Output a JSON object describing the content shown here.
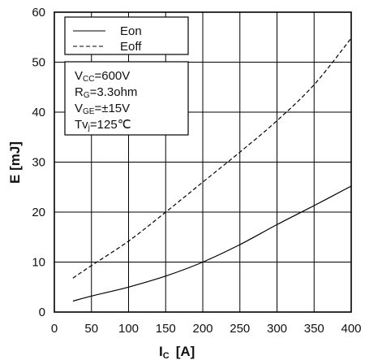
{
  "chart_data": {
    "type": "line",
    "xlabel_main": "I",
    "xlabel_sub": "C",
    "xlabel_unit": "[A]",
    "ylabel": "E [mJ]",
    "xlim": [
      0,
      400
    ],
    "ylim": [
      0,
      60
    ],
    "xticks": [
      "0",
      "50",
      "100",
      "150",
      "200",
      "250",
      "300",
      "350",
      "400"
    ],
    "yticks": [
      "0",
      "10",
      "20",
      "30",
      "40",
      "50",
      "60"
    ],
    "grid": true,
    "legend_position": "top-left",
    "series": [
      {
        "name": "Eon",
        "style": "solid",
        "x": [
          25,
          50,
          100,
          150,
          200,
          250,
          300,
          350,
          400
        ],
        "y": [
          2.2,
          3.2,
          5.0,
          7.2,
          10.0,
          13.5,
          17.5,
          21.3,
          25.2
        ]
      },
      {
        "name": "Eoff",
        "style": "dashed",
        "x": [
          25,
          50,
          100,
          150,
          200,
          250,
          300,
          350,
          400
        ],
        "y": [
          6.8,
          9.3,
          14.2,
          20.0,
          26.0,
          32.0,
          38.3,
          45.5,
          54.8
        ]
      }
    ],
    "conditions": [
      {
        "main": "V",
        "sub": "CC",
        "rest": "=600V"
      },
      {
        "main": "R",
        "sub": "G",
        "rest": "=3.3ohm"
      },
      {
        "main": "V",
        "sub": "GE",
        "rest": "=±15V"
      },
      {
        "main": "Tv",
        "sub": "j",
        "rest": "=125℃"
      }
    ]
  },
  "colors": {
    "line": "#000000",
    "grid": "#000000",
    "background": "#ffffff"
  }
}
